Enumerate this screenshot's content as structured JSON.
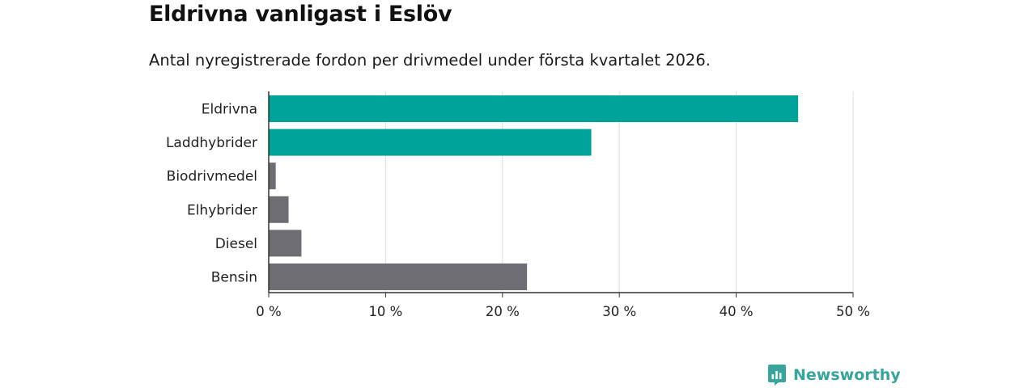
{
  "header": {
    "title": "Eldrivna vanligast i Eslöv",
    "subtitle": "Antal nyregistrerade fordon per drivmedel under första kvartalet 2026."
  },
  "brand": {
    "name": "Newsworthy",
    "color": "#37a59a"
  },
  "colors": {
    "highlight": "#00a39a",
    "neutral": "#6e6d73",
    "grid": "#dddddd",
    "axis": "#333333"
  },
  "chart_data": {
    "type": "bar",
    "orientation": "horizontal",
    "title": "Eldrivna vanligast i Eslöv",
    "subtitle": "Antal nyregistrerade fordon per drivmedel under första kvartalet 2026.",
    "xlabel": "",
    "ylabel": "",
    "xlim": [
      0,
      50
    ],
    "grid": true,
    "ticks": [
      {
        "value": 0,
        "label": "0 %"
      },
      {
        "value": 10,
        "label": "10 %"
      },
      {
        "value": 20,
        "label": "20 %"
      },
      {
        "value": 30,
        "label": "30 %"
      },
      {
        "value": 40,
        "label": "40 %"
      },
      {
        "value": 50,
        "label": "50 %"
      }
    ],
    "categories": [
      "Eldrivna",
      "Laddhybrider",
      "Biodrivmedel",
      "Elhybrider",
      "Diesel",
      "Bensin"
    ],
    "values": [
      45.3,
      27.6,
      0.6,
      1.7,
      2.8,
      22.1
    ],
    "highlighted": [
      true,
      true,
      false,
      false,
      false,
      false
    ]
  }
}
